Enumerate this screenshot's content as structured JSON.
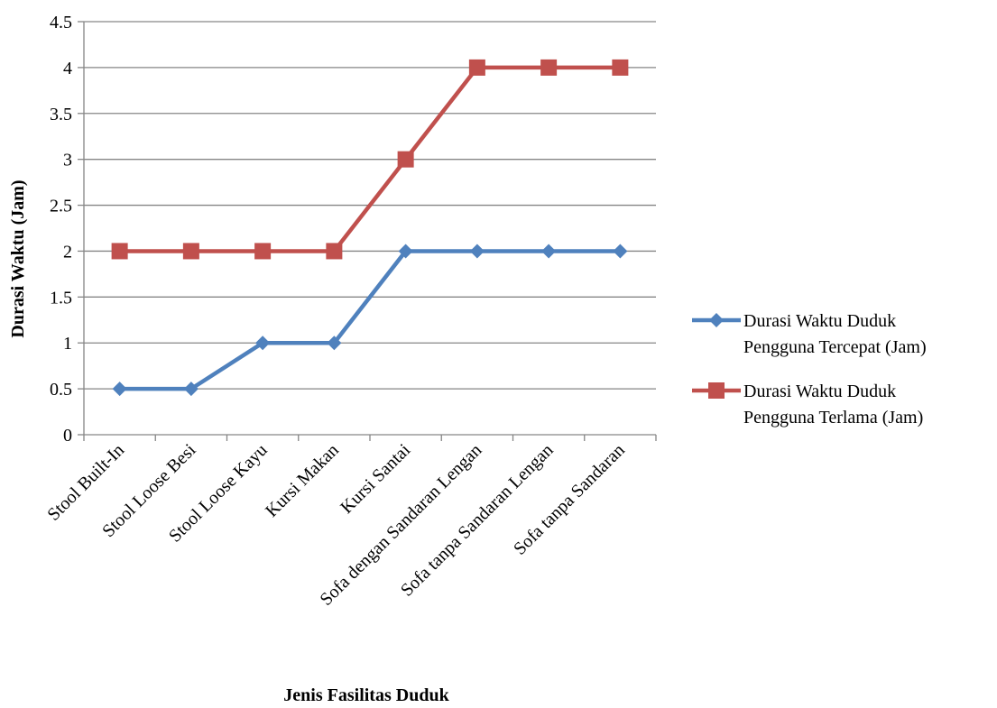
{
  "chart_data": {
    "type": "line",
    "title": "",
    "xlabel": "Jenis Fasilitas Duduk",
    "ylabel": "Durasi Waktu (Jam)",
    "ylim": [
      0,
      4.5
    ],
    "yticks": [
      0,
      0.5,
      1,
      1.5,
      2,
      2.5,
      3,
      3.5,
      4,
      4.5
    ],
    "grid": true,
    "legend_position": "right",
    "categories": [
      "Stool Built-In",
      "Stool Loose Besi",
      "Stool Loose Kayu",
      "Kursi Makan",
      "Kursi Santai",
      "Sofa dengan Sandaran Lengan",
      "Sofa tanpa Sandaran Lengan",
      "Sofa tanpa Sandaran"
    ],
    "series": [
      {
        "name_lines": [
          "Durasi Waktu Duduk",
          "Pengguna Tercepat (Jam)"
        ],
        "marker": "diamond",
        "color": "#4f81bd",
        "values": [
          0.5,
          0.5,
          1,
          1,
          2,
          2,
          2,
          2
        ]
      },
      {
        "name_lines": [
          "Durasi Waktu Duduk",
          "Pengguna Terlama (Jam)"
        ],
        "marker": "square",
        "color": "#c0504d",
        "values": [
          2,
          2,
          2,
          2,
          3,
          4,
          4,
          4
        ]
      }
    ]
  }
}
